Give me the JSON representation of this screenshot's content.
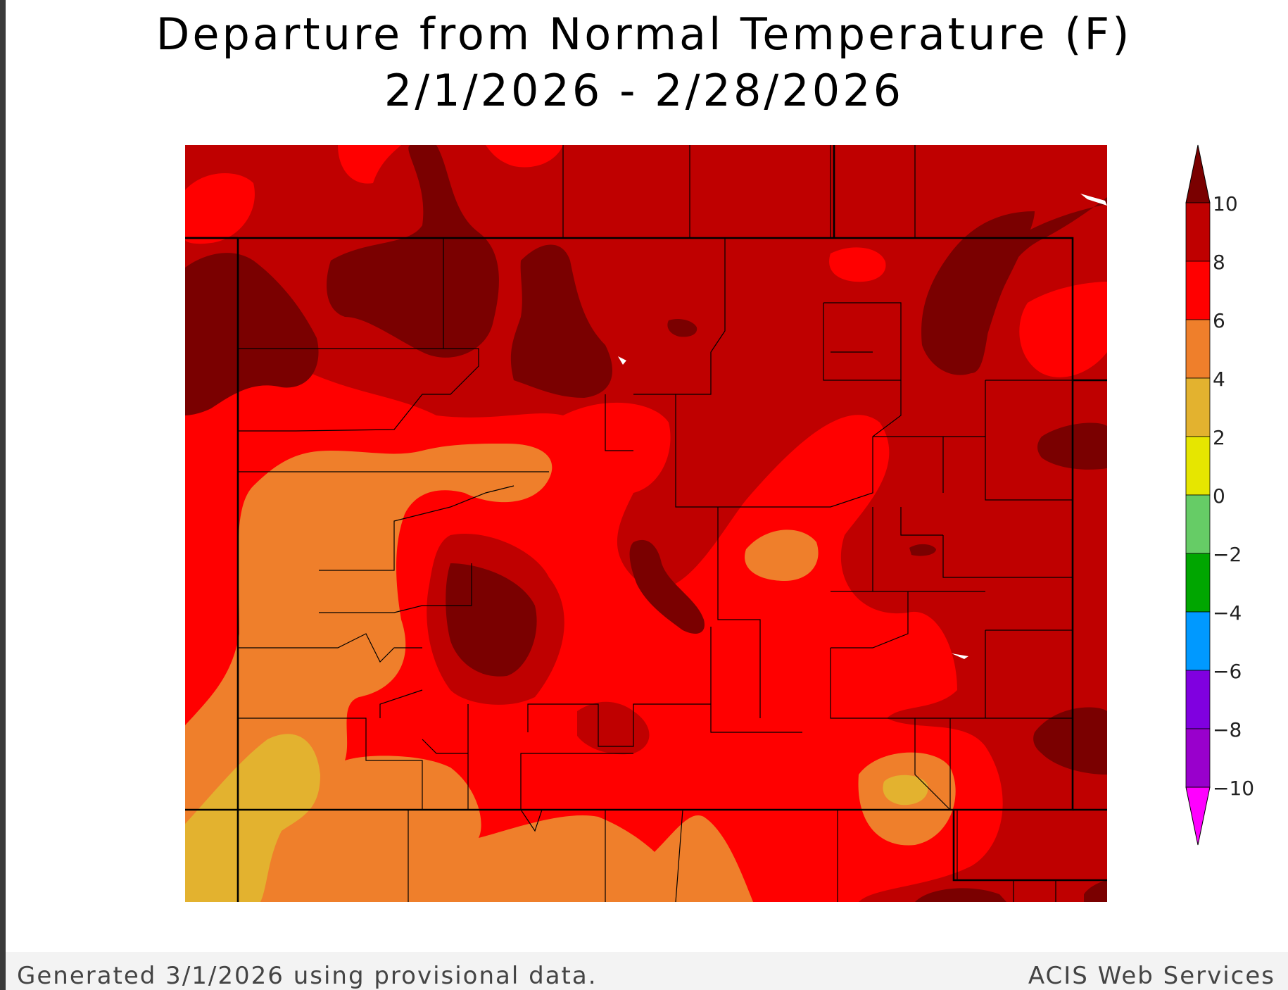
{
  "title": {
    "line1": "Departure from Normal Temperature (F)",
    "line2": "2/1/2026 - 2/28/2026"
  },
  "legend": {
    "ticks": [
      "10",
      "8",
      "6",
      "4",
      "2",
      "0",
      "−2",
      "−4",
      "−6",
      "−8",
      "−10"
    ],
    "bands": [
      {
        "range": "above 10",
        "color": "#7a0000"
      },
      {
        "range": "8 to 10",
        "color": "#bf0000"
      },
      {
        "range": "6 to 8",
        "color": "#ff0000"
      },
      {
        "range": "4 to 6",
        "color": "#ef7f2b"
      },
      {
        "range": "2 to 4",
        "color": "#e3b22f"
      },
      {
        "range": "0 to 2",
        "color": "#e6e600"
      },
      {
        "range": "-2 to 0",
        "color": "#66cc66"
      },
      {
        "range": "-4 to -2",
        "color": "#00a600"
      },
      {
        "range": "-6 to -4",
        "color": "#0099ff"
      },
      {
        "range": "-8 to -6",
        "color": "#8000e0"
      },
      {
        "range": "-10 to -8",
        "color": "#9900cc"
      },
      {
        "range": "below -10",
        "color": "#ff00ff"
      }
    ]
  },
  "footer": {
    "left": "Generated 3/1/2026 using provisional data.",
    "right": "ACIS Web Services"
  }
}
